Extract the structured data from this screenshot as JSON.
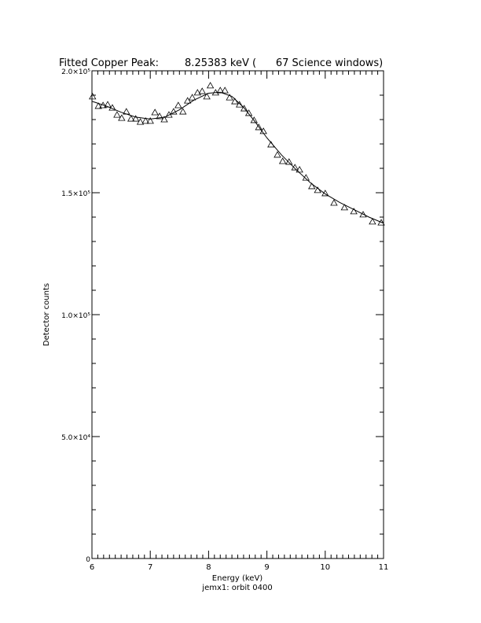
{
  "chart_data": {
    "type": "scatter",
    "title": "Fitted Copper Peak:        8.25383 keV (      67 Science windows)",
    "x_label": "Energy (keV)",
    "subtitle": "jemx1: orbit 0400",
    "y_label": "Detector counts",
    "xlim": [
      6,
      11
    ],
    "xticks": [
      6,
      7,
      8,
      9,
      10,
      11
    ],
    "xminor": 10,
    "ylim": [
      0,
      200000
    ],
    "yticks": [
      0,
      {
        "value": 50000,
        "label": "5.0×10⁴"
      },
      {
        "value": 100000,
        "label": "1.0×10⁵"
      },
      {
        "value": 150000,
        "label": "1.5×10⁵"
      },
      {
        "value": 200000,
        "label": "2.0×10⁵"
      }
    ],
    "yminor": 5,
    "series": [
      {
        "marker": "triangle",
        "color": "#000000",
        "x": [
          6.01,
          6.11,
          6.19,
          6.27,
          6.35,
          6.43,
          6.51,
          6.59,
          6.67,
          6.75,
          6.83,
          6.92,
          7.0,
          7.08,
          7.16,
          7.24,
          7.32,
          7.4,
          7.48,
          7.56,
          7.64,
          7.72,
          7.81,
          7.89,
          7.97,
          8.03,
          8.12,
          8.2,
          8.28,
          8.36,
          8.45,
          8.53,
          8.61,
          8.69,
          8.78,
          8.86,
          8.94,
          9.07,
          9.18,
          9.27,
          9.38,
          9.48,
          9.56,
          9.67,
          9.77,
          9.87,
          10.0,
          10.15,
          10.33,
          10.49,
          10.65,
          10.81,
          10.96
        ],
        "values": [
          189400,
          185500,
          185800,
          186100,
          184800,
          181900,
          180600,
          183200,
          180300,
          180300,
          179000,
          179400,
          179400,
          182900,
          181300,
          180000,
          181900,
          183200,
          185800,
          183200,
          187700,
          189000,
          191000,
          191600,
          189400,
          193900,
          191000,
          191900,
          191900,
          189000,
          187400,
          186100,
          184500,
          182600,
          179700,
          176800,
          175200,
          169700,
          165500,
          162900,
          162600,
          160300,
          159400,
          156100,
          152600,
          151000,
          149700,
          145800,
          143900,
          142300,
          141000,
          138100,
          137700
        ]
      },
      {
        "marker": "line",
        "color": "#000000",
        "x": [
          6.0,
          6.25,
          6.5,
          6.75,
          7.0,
          7.25,
          7.5,
          7.75,
          8.0,
          8.2,
          8.4,
          8.6,
          8.8,
          9.0,
          9.25,
          9.5,
          9.75,
          10.0,
          10.25,
          10.5,
          10.75,
          11.0
        ],
        "values": [
          187500,
          185500,
          183000,
          181000,
          180200,
          181000,
          184000,
          188000,
          190800,
          191200,
          189500,
          185000,
          179000,
          172500,
          165500,
          159500,
          154000,
          149500,
          146000,
          143000,
          140000,
          137500
        ]
      }
    ]
  }
}
